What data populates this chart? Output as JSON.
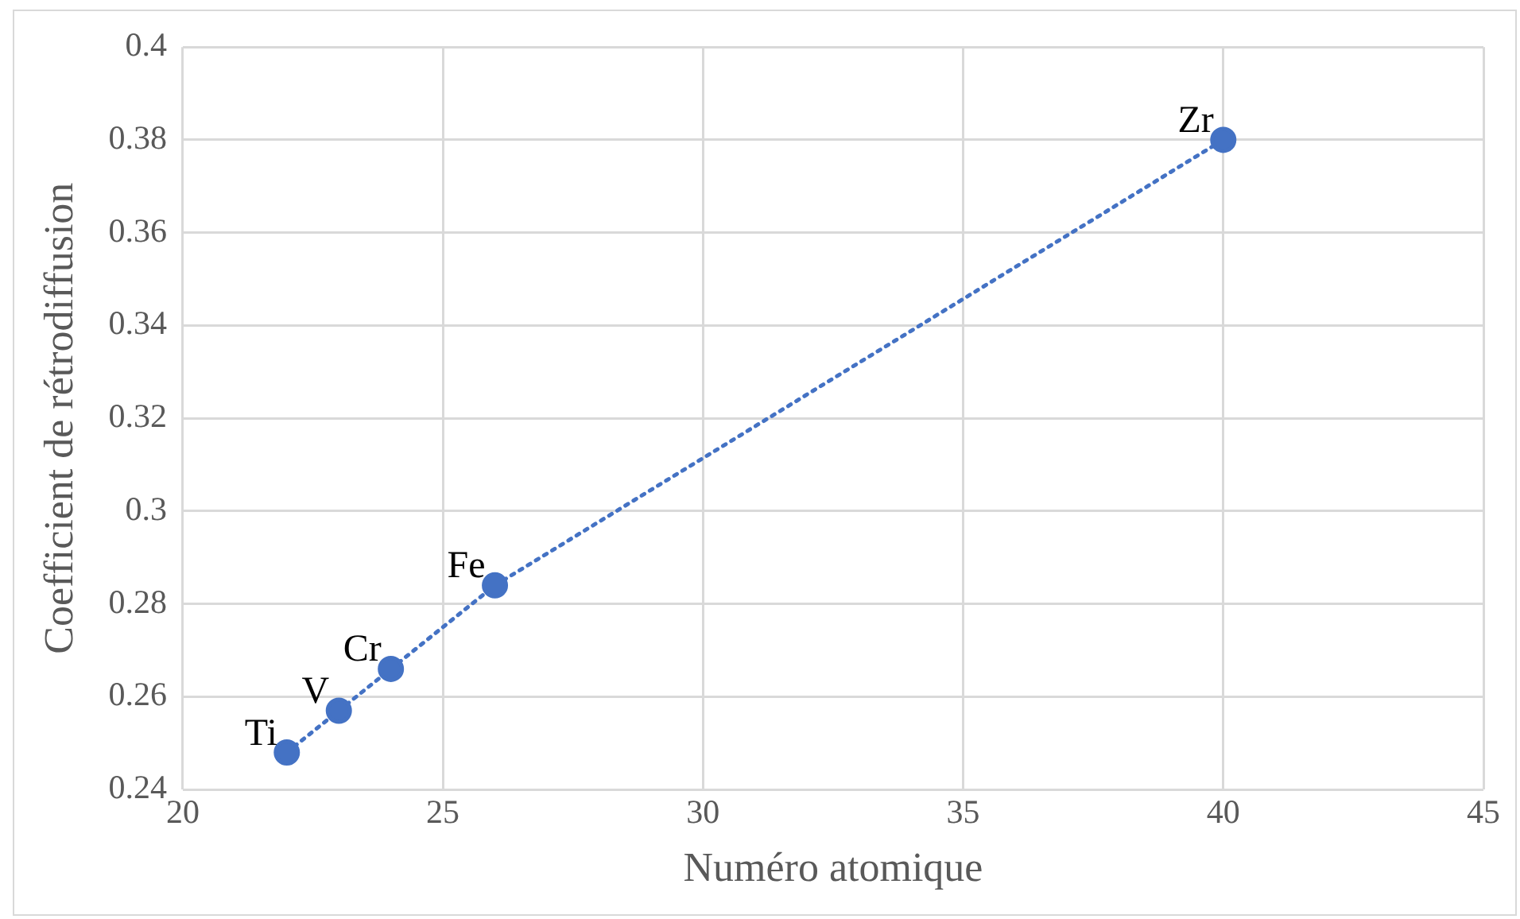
{
  "chart_data": {
    "type": "line",
    "xlabel": "Numéro atomique",
    "ylabel": "Coefficient de rétrodiffusion",
    "x": [
      22,
      23,
      24,
      26,
      40
    ],
    "series": [
      {
        "color": "#4472c4",
        "values": [
          0.248,
          0.257,
          0.266,
          0.284,
          0.38
        ]
      }
    ],
    "xlim": [
      20,
      45
    ],
    "xticks": [
      20,
      25,
      30,
      35,
      40,
      45
    ],
    "ylim": [
      0.24,
      0.4
    ],
    "yticks": [
      0.24,
      0.26,
      0.28,
      0.3,
      0.32,
      0.34,
      0.36,
      0.38,
      0.4
    ],
    "grid": true,
    "legend": false,
    "marker": "circle",
    "line_style": "dotted",
    "annotations": [
      {
        "text": "Ti",
        "x": 22,
        "y": 0.248
      },
      {
        "text": "V",
        "x": 23,
        "y": 0.257
      },
      {
        "text": "Cr",
        "x": 24,
        "y": 0.266
      },
      {
        "text": "Fe",
        "x": 26,
        "y": 0.284
      },
      {
        "text": "Zr",
        "x": 40,
        "y": 0.38
      }
    ]
  }
}
